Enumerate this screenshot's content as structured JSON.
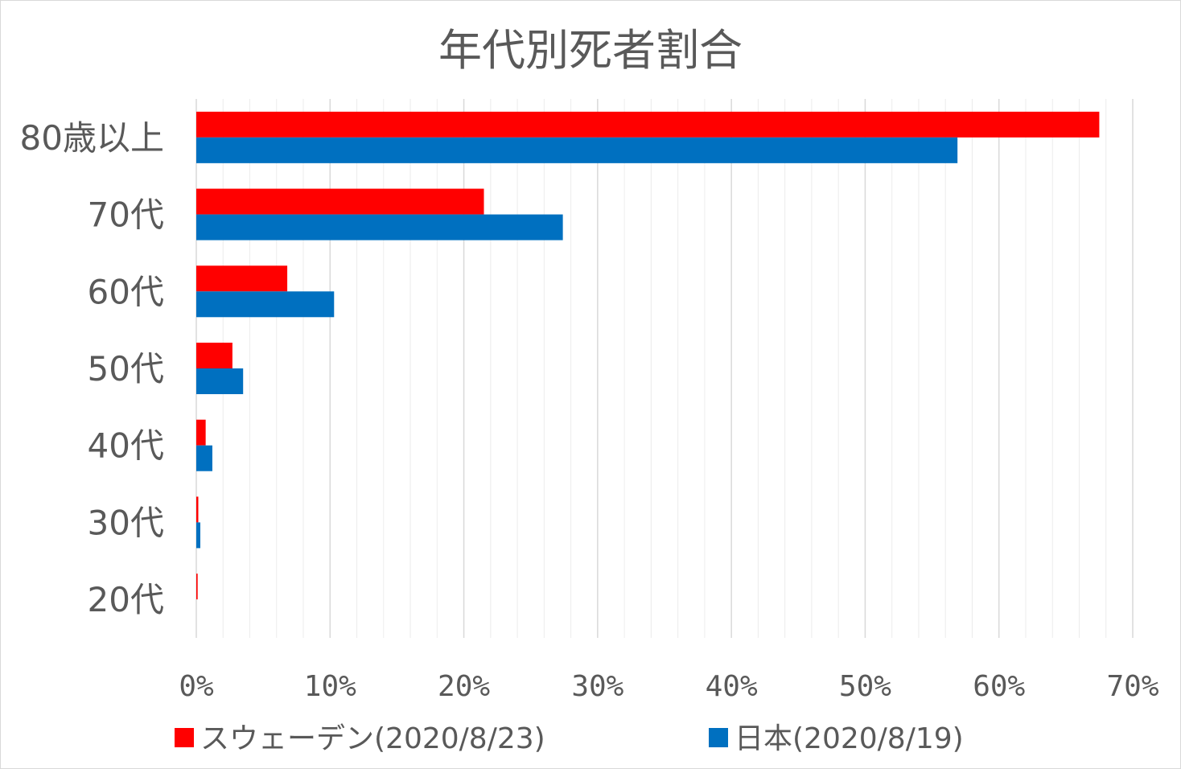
{
  "chart_data": {
    "type": "bar",
    "orientation": "horizontal",
    "title": "年代別死者割合",
    "categories": [
      "80歳以上",
      "70代",
      "60代",
      "50代",
      "40代",
      "30代",
      "20代"
    ],
    "series": [
      {
        "name": "スウェーデン(2020/8/23)",
        "color": "#ff0000",
        "values": [
          67.5,
          21.5,
          6.8,
          2.7,
          0.7,
          0.15,
          0.1
        ]
      },
      {
        "name": "日本(2020/8/19)",
        "color": "#0070c0",
        "values": [
          56.9,
          27.4,
          10.3,
          3.5,
          1.2,
          0.3,
          0.0
        ]
      }
    ],
    "xlim": [
      0,
      70
    ],
    "xticks": [
      0,
      10,
      20,
      30,
      40,
      50,
      60,
      70
    ],
    "xtick_labels": [
      "0%",
      "10%",
      "20%",
      "30%",
      "40%",
      "50%",
      "60%",
      "70%"
    ],
    "minor_step": 2,
    "grid": true,
    "legend_position": "bottom"
  }
}
